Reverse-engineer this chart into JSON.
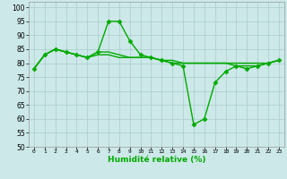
{
  "xlabel": "Humidité relative (%)",
  "x": [
    0,
    1,
    2,
    3,
    4,
    5,
    6,
    7,
    8,
    9,
    10,
    11,
    12,
    13,
    14,
    15,
    16,
    17,
    18,
    19,
    20,
    21,
    22,
    23
  ],
  "line1": [
    78,
    83,
    85,
    84,
    83,
    82,
    84,
    95,
    95,
    88,
    83,
    82,
    81,
    80,
    79,
    58,
    60,
    73,
    77,
    79,
    78,
    79,
    80,
    81
  ],
  "line2": [
    78,
    83,
    85,
    84,
    83,
    82,
    84,
    84,
    83,
    82,
    82,
    82,
    81,
    80,
    80,
    80,
    80,
    80,
    80,
    80,
    80,
    80,
    80,
    81
  ],
  "line3": [
    78,
    83,
    85,
    84,
    83,
    82,
    83,
    83,
    82,
    82,
    82,
    82,
    81,
    81,
    80,
    80,
    80,
    80,
    80,
    79,
    79,
    79,
    80,
    81
  ],
  "ylim": [
    50,
    102
  ],
  "yticks": [
    50,
    55,
    60,
    65,
    70,
    75,
    80,
    85,
    90,
    95,
    100
  ],
  "bg_color": "#cce8e8",
  "grid_color": "#aacccc",
  "line_color": "#00aa00",
  "markersize": 2.5,
  "linewidth": 1.0
}
